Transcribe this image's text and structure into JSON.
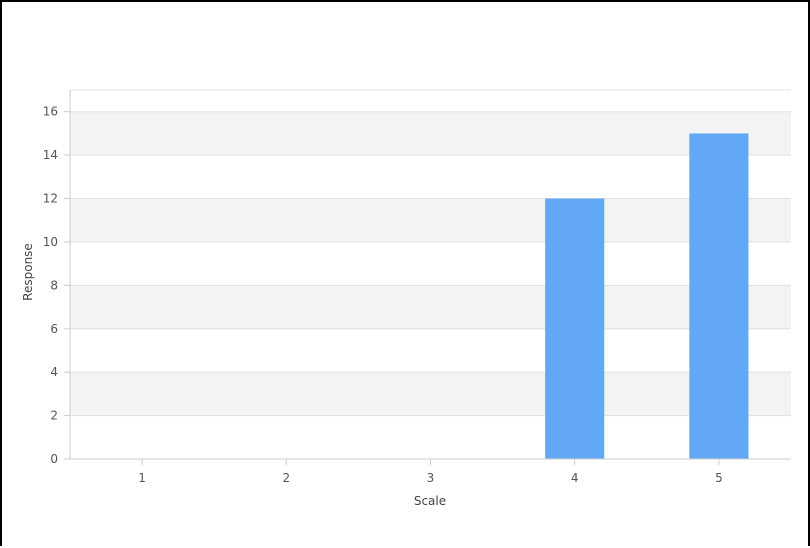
{
  "chart_data": {
    "type": "bar",
    "title": "",
    "xlabel": "Scale",
    "ylabel": "Response",
    "categories": [
      "1",
      "2",
      "3",
      "4",
      "5"
    ],
    "values": [
      0,
      0,
      0,
      12,
      15
    ],
    "ylim": [
      0,
      17
    ],
    "yticks": [
      0,
      2,
      4,
      6,
      8,
      10,
      12,
      14,
      16
    ],
    "ytick_labels": [
      "0",
      "2",
      "4",
      "6",
      "8",
      "10",
      "12",
      "14",
      "16"
    ],
    "grid": true,
    "legend": "none",
    "colors": {
      "bar": "#63a8f5",
      "band": "#f3f3f3",
      "gridline": "#e0e0e0",
      "axis": "#cccccc"
    }
  }
}
